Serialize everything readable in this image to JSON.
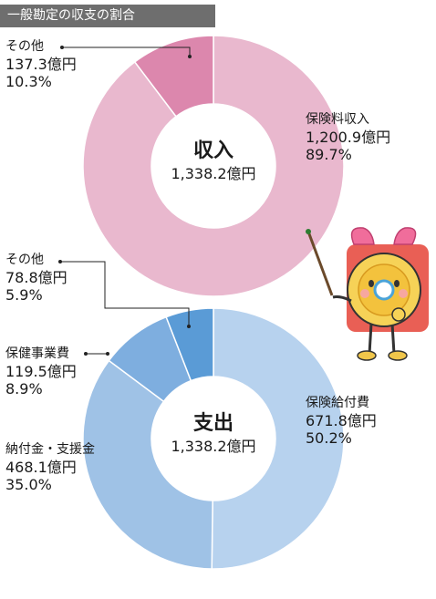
{
  "header": {
    "title": "一般勘定の収支の割合"
  },
  "chart_data": [
    {
      "type": "pie",
      "center_label": "収入",
      "total": "1,338.2億円",
      "slices": [
        {
          "label": "保険料収入",
          "amount": "1,200.9億円",
          "pct": "89.7%",
          "value": 89.7,
          "color": "#e9b8ce"
        },
        {
          "label": "その他",
          "amount": "137.3億円",
          "pct": "10.3%",
          "value": 10.3,
          "color": "#dc87ad"
        }
      ]
    },
    {
      "type": "pie",
      "center_label": "支出",
      "total": "1,338.2億円",
      "slices": [
        {
          "label": "保険給付費",
          "amount": "671.8億円",
          "pct": "50.2%",
          "value": 50.2,
          "color": "#b7d2ee"
        },
        {
          "label": "納付金・支援金",
          "amount": "468.1億円",
          "pct": "35.0%",
          "value": 35.0,
          "color": "#9fc2e6"
        },
        {
          "label": "保健事業費",
          "amount": "119.5億円",
          "pct": "8.9%",
          "value": 8.9,
          "color": "#7eaedf"
        },
        {
          "label": "その他",
          "amount": "78.8億円",
          "pct": "5.9%",
          "value": 5.9,
          "color": "#5a9bd6"
        }
      ]
    }
  ]
}
